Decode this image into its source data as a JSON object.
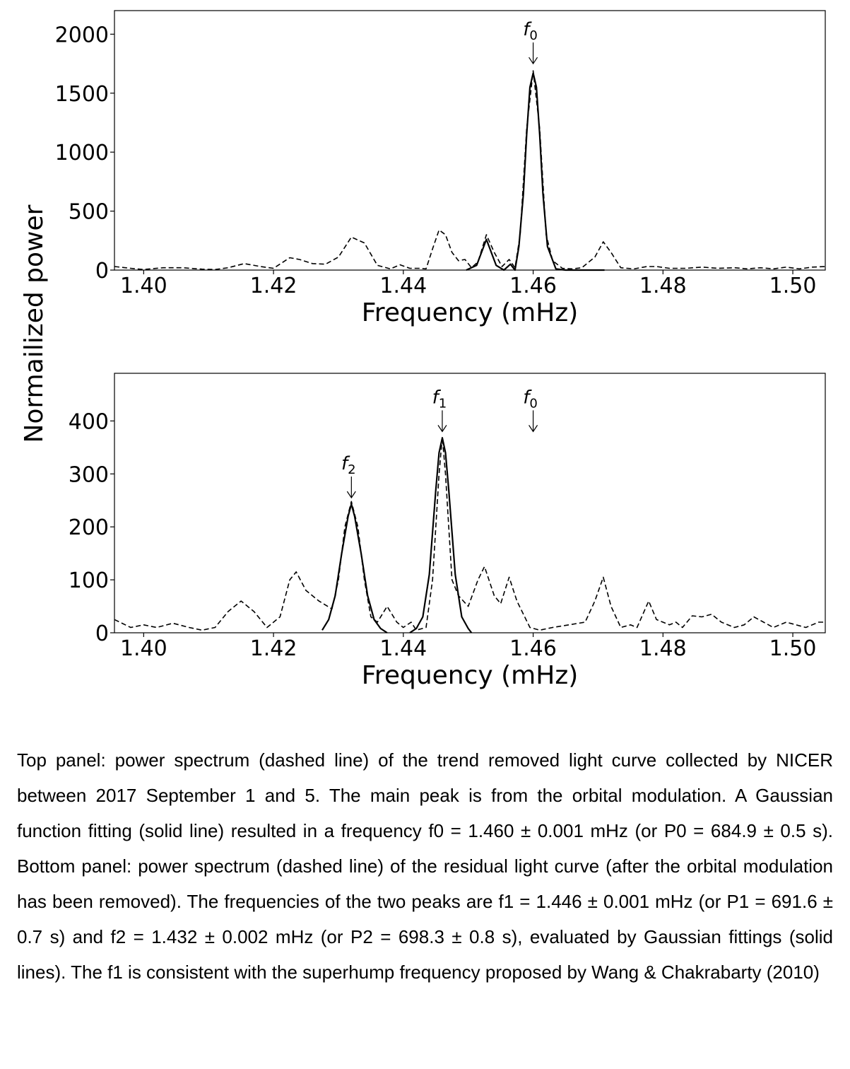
{
  "chart_data": [
    {
      "type": "line",
      "panel": "top",
      "xlabel": "Frequency (mHz)",
      "ylabel": "Normailized power",
      "xlim": [
        1.3955,
        1.505
      ],
      "ylim": [
        0,
        2200
      ],
      "xticks": [
        1.4,
        1.42,
        1.44,
        1.46,
        1.48,
        1.5
      ],
      "xtick_labels": [
        "1.40",
        "1.42",
        "1.44",
        "1.46",
        "1.48",
        "1.50"
      ],
      "yticks": [
        0,
        500,
        1000,
        1500,
        2000
      ],
      "ytick_labels": [
        "0",
        "500",
        "1000",
        "1500",
        "2000"
      ],
      "grid": false,
      "series": [
        {
          "style": "dashed",
          "points": [
            [
              1.3955,
              30
            ],
            [
              1.398,
              15
            ],
            [
              1.4,
              5
            ],
            [
              1.403,
              20
            ],
            [
              1.406,
              20
            ],
            [
              1.409,
              8
            ],
            [
              1.411,
              5
            ],
            [
              1.413,
              20
            ],
            [
              1.4155,
              55
            ],
            [
              1.418,
              30
            ],
            [
              1.42,
              15
            ],
            [
              1.4225,
              105
            ],
            [
              1.424,
              90
            ],
            [
              1.426,
              55
            ],
            [
              1.428,
              50
            ],
            [
              1.43,
              110
            ],
            [
              1.432,
              280
            ],
            [
              1.434,
              230
            ],
            [
              1.436,
              40
            ],
            [
              1.438,
              10
            ],
            [
              1.4395,
              45
            ],
            [
              1.441,
              15
            ],
            [
              1.4425,
              15
            ],
            [
              1.4435,
              10
            ],
            [
              1.4445,
              180
            ],
            [
              1.4455,
              340
            ],
            [
              1.4465,
              300
            ],
            [
              1.4475,
              150
            ],
            [
              1.4485,
              80
            ],
            [
              1.4495,
              90
            ],
            [
              1.4505,
              20
            ],
            [
              1.4515,
              70
            ],
            [
              1.4528,
              300
            ],
            [
              1.454,
              150
            ],
            [
              1.4552,
              30
            ],
            [
              1.4563,
              90
            ],
            [
              1.4572,
              20
            ],
            [
              1.458,
              300
            ],
            [
              1.459,
              1200
            ],
            [
              1.46,
              1690
            ],
            [
              1.461,
              1200
            ],
            [
              1.462,
              300
            ],
            [
              1.463,
              80
            ],
            [
              1.4645,
              15
            ],
            [
              1.466,
              10
            ],
            [
              1.4675,
              20
            ],
            [
              1.4695,
              110
            ],
            [
              1.4708,
              240
            ],
            [
              1.472,
              150
            ],
            [
              1.4735,
              20
            ],
            [
              1.4755,
              10
            ],
            [
              1.4775,
              30
            ],
            [
              1.479,
              30
            ],
            [
              1.481,
              15
            ],
            [
              1.4835,
              15
            ],
            [
              1.486,
              25
            ],
            [
              1.4885,
              15
            ],
            [
              1.491,
              20
            ],
            [
              1.493,
              10
            ],
            [
              1.495,
              20
            ],
            [
              1.497,
              10
            ],
            [
              1.499,
              25
            ],
            [
              1.501,
              10
            ],
            [
              1.503,
              25
            ],
            [
              1.505,
              30
            ]
          ]
        },
        {
          "style": "solid",
          "points": [
            [
              1.4497,
              0
            ],
            [
              1.4513,
              40
            ],
            [
              1.4528,
              260
            ],
            [
              1.4543,
              40
            ],
            [
              1.4555,
              0
            ],
            [
              1.4565,
              50
            ],
            [
              1.4572,
              0
            ],
            [
              1.4578,
              200
            ],
            [
              1.4585,
              650
            ],
            [
              1.459,
              1150
            ],
            [
              1.4595,
              1550
            ],
            [
              1.46,
              1670
            ],
            [
              1.4605,
              1550
            ],
            [
              1.461,
              1150
            ],
            [
              1.4615,
              650
            ],
            [
              1.4622,
              200
            ],
            [
              1.4635,
              10
            ],
            [
              1.465,
              0
            ],
            [
              1.471,
              0
            ]
          ]
        }
      ],
      "annotations": [
        {
          "symbol": "f",
          "subscript": "0",
          "x": 1.46,
          "arrow_to_y": 1750
        }
      ]
    },
    {
      "type": "line",
      "panel": "bottom",
      "xlabel": "Frequency (mHz)",
      "ylabel": "Normailized power",
      "xlim": [
        1.3955,
        1.505
      ],
      "ylim": [
        0,
        490
      ],
      "xticks": [
        1.4,
        1.42,
        1.44,
        1.46,
        1.48,
        1.5
      ],
      "xtick_labels": [
        "1.40",
        "1.42",
        "1.44",
        "1.46",
        "1.48",
        "1.50"
      ],
      "yticks": [
        0,
        100,
        200,
        300,
        400
      ],
      "ytick_labels": [
        "0",
        "100",
        "200",
        "300",
        "400"
      ],
      "grid": false,
      "series": [
        {
          "style": "dashed",
          "points": [
            [
              1.3955,
              25
            ],
            [
              1.398,
              10
            ],
            [
              1.4,
              15
            ],
            [
              1.402,
              10
            ],
            [
              1.4045,
              18
            ],
            [
              1.407,
              10
            ],
            [
              1.409,
              5
            ],
            [
              1.411,
              10
            ],
            [
              1.413,
              40
            ],
            [
              1.415,
              60
            ],
            [
              1.417,
              40
            ],
            [
              1.419,
              10
            ],
            [
              1.421,
              30
            ],
            [
              1.4225,
              100
            ],
            [
              1.4235,
              115
            ],
            [
              1.425,
              80
            ],
            [
              1.427,
              60
            ],
            [
              1.429,
              45
            ],
            [
              1.43,
              100
            ],
            [
              1.431,
              200
            ],
            [
              1.432,
              248
            ],
            [
              1.433,
              200
            ],
            [
              1.434,
              100
            ],
            [
              1.435,
              30
            ],
            [
              1.436,
              20
            ],
            [
              1.4375,
              50
            ],
            [
              1.439,
              20
            ],
            [
              1.44,
              10
            ],
            [
              1.4412,
              20
            ],
            [
              1.442,
              5
            ],
            [
              1.4435,
              10
            ],
            [
              1.4445,
              100
            ],
            [
              1.4455,
              300
            ],
            [
              1.446,
              370
            ],
            [
              1.4465,
              300
            ],
            [
              1.4475,
              100
            ],
            [
              1.4485,
              70
            ],
            [
              1.45,
              50
            ],
            [
              1.4515,
              100
            ],
            [
              1.4525,
              125
            ],
            [
              1.454,
              70
            ],
            [
              1.455,
              55
            ],
            [
              1.4563,
              105
            ],
            [
              1.4575,
              60
            ],
            [
              1.4595,
              10
            ],
            [
              1.461,
              5
            ],
            [
              1.463,
              10
            ],
            [
              1.4655,
              15
            ],
            [
              1.468,
              20
            ],
            [
              1.4695,
              60
            ],
            [
              1.4708,
              105
            ],
            [
              1.472,
              50
            ],
            [
              1.4735,
              10
            ],
            [
              1.475,
              15
            ],
            [
              1.476,
              10
            ],
            [
              1.4778,
              60
            ],
            [
              1.479,
              25
            ],
            [
              1.481,
              15
            ],
            [
              1.482,
              20
            ],
            [
              1.483,
              10
            ],
            [
              1.4845,
              32
            ],
            [
              1.486,
              30
            ],
            [
              1.4875,
              35
            ],
            [
              1.489,
              20
            ],
            [
              1.491,
              10
            ],
            [
              1.4925,
              15
            ],
            [
              1.494,
              30
            ],
            [
              1.4955,
              20
            ],
            [
              1.497,
              10
            ],
            [
              1.499,
              20
            ],
            [
              1.5005,
              15
            ],
            [
              1.502,
              10
            ],
            [
              1.504,
              20
            ],
            [
              1.505,
              20
            ]
          ]
        },
        {
          "style": "solid",
          "points": [
            [
              1.4275,
              5
            ],
            [
              1.4285,
              25
            ],
            [
              1.4295,
              70
            ],
            [
              1.4305,
              150
            ],
            [
              1.4315,
              220
            ],
            [
              1.432,
              243
            ],
            [
              1.4325,
              220
            ],
            [
              1.4335,
              150
            ],
            [
              1.4345,
              70
            ],
            [
              1.4355,
              25
            ],
            [
              1.4365,
              8
            ],
            [
              1.4375,
              0
            ]
          ]
        },
        {
          "style": "solid",
          "points": [
            [
              1.441,
              0
            ],
            [
              1.442,
              8
            ],
            [
              1.443,
              30
            ],
            [
              1.444,
              110
            ],
            [
              1.445,
              270
            ],
            [
              1.4455,
              340
            ],
            [
              1.446,
              368
            ],
            [
              1.4465,
              340
            ],
            [
              1.447,
              270
            ],
            [
              1.448,
              110
            ],
            [
              1.449,
              30
            ],
            [
              1.45,
              8
            ],
            [
              1.4505,
              0
            ]
          ]
        }
      ],
      "annotations": [
        {
          "symbol": "f",
          "subscript": "2",
          "x": 1.432,
          "arrow_to_y": 255
        },
        {
          "symbol": "f",
          "subscript": "1",
          "x": 1.446,
          "arrow_to_y": 380
        },
        {
          "symbol": "f",
          "subscript": "0",
          "x": 1.46,
          "arrow_to_y": 380
        }
      ]
    }
  ],
  "caption": "Top panel: power spectrum (dashed line) of the trend removed light curve collected by NICER between 2017 September 1 and 5. The main peak is from the orbital modulation. A Gaussian function fitting (solid line) resulted in a frequency f0 = 1.460 ± 0.001 mHz (or P0 = 684.9 ± 0.5 s). Bottom panel: power spectrum (dashed line) of the residual light curve (after the orbital modulation has been removed). The frequencies of the two peaks are f1 = 1.446 ± 0.001 mHz (or P1 = 691.6 ± 0.7 s) and f2 = 1.432 ± 0.002 mHz (or P2 = 698.3 ± 0.8 s), evaluated by Gaussian fittings (solid lines). The f1 is consistent with the superhump frequency proposed by Wang & Chakrabarty (2010)"
}
